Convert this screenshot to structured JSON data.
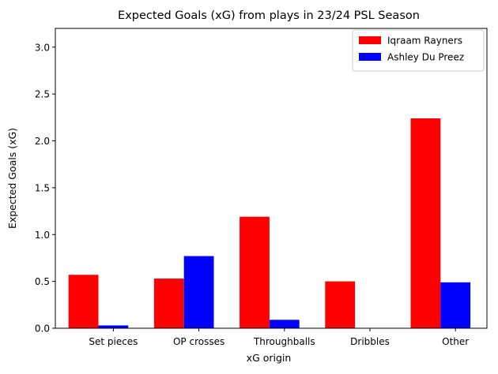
{
  "chart_data": {
    "type": "bar",
    "title": "Expected Goals (xG) from plays in 23/24 PSL Season",
    "xlabel": "xG origin",
    "ylabel": "Expected Goals (xG)",
    "categories": [
      "Set pieces",
      "OP crosses",
      "Throughballs",
      "Dribbles",
      "Other"
    ],
    "series": [
      {
        "name": "Iqraam Rayners",
        "color": "#ff0000",
        "values": [
          0.57,
          0.53,
          1.19,
          0.5,
          2.24
        ]
      },
      {
        "name": "Ashley Du Preez",
        "color": "#0000ff",
        "values": [
          0.03,
          0.77,
          0.09,
          0.0,
          0.49
        ]
      }
    ],
    "ylim": [
      0,
      3.2
    ],
    "yticks": [
      0.0,
      0.5,
      1.0,
      1.5,
      2.0,
      2.5,
      3.0
    ],
    "ytick_labels": [
      "0.0",
      "0.5",
      "1.0",
      "1.5",
      "2.0",
      "2.5",
      "3.0"
    ],
    "grid": false,
    "legend_position": "top-right"
  }
}
